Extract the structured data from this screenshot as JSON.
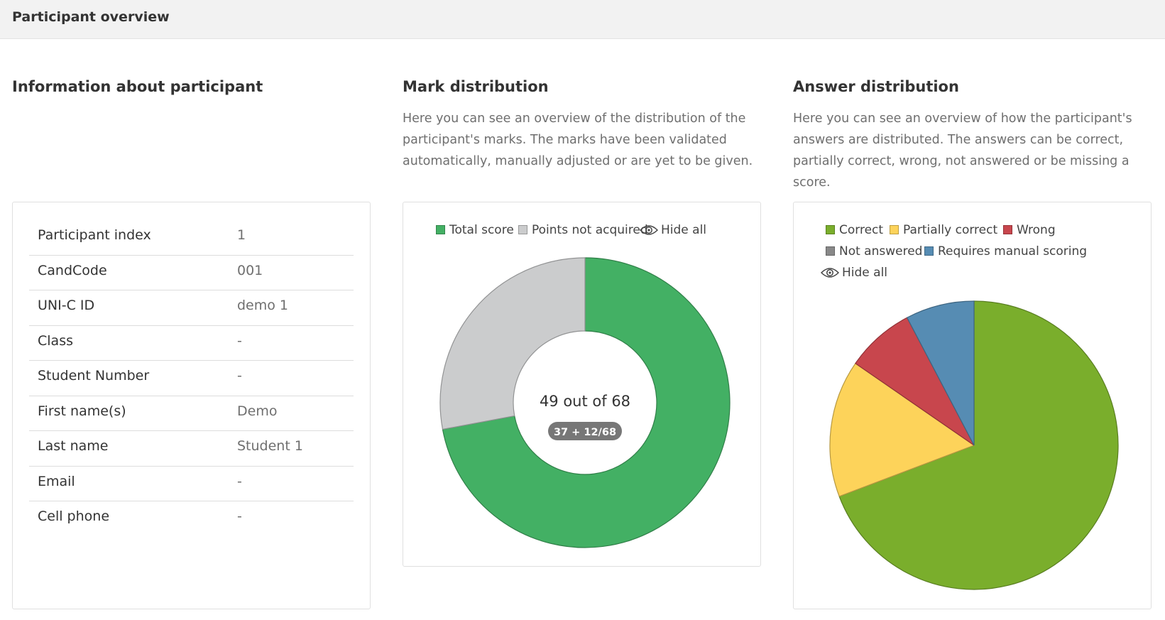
{
  "header": {
    "title": "Participant overview"
  },
  "info": {
    "title": "Information about participant",
    "rows": [
      {
        "label": "Participant index",
        "value": "1"
      },
      {
        "label": "CandCode",
        "value": "001"
      },
      {
        "label": "UNI-C ID",
        "value": "demo 1"
      },
      {
        "label": "Class",
        "value": "-"
      },
      {
        "label": "Student Number",
        "value": "-"
      },
      {
        "label": "First name(s)",
        "value": "Demo"
      },
      {
        "label": "Last name",
        "value": "Student 1"
      },
      {
        "label": "Email",
        "value": "-"
      },
      {
        "label": "Cell phone",
        "value": "-"
      }
    ]
  },
  "marks": {
    "title": "Mark distribution",
    "description": "Here you can see an overview of the distribution of the participant's marks. The marks have been validated automatically, manually adjusted or are yet to be given.",
    "legend": {
      "total": "Total score",
      "not_acquired": "Points not acquired",
      "hide_all": "Hide all"
    },
    "center_label": "49 out of 68",
    "center_badge": "37 + 12/68"
  },
  "answers": {
    "title": "Answer distribution",
    "description": "Here you can see an overview of how the participant's answers are distributed. The answers can be correct, partially correct, wrong, not answered or be missing a score.",
    "legend": {
      "correct": "Correct",
      "partial": "Partially correct",
      "wrong": "Wrong",
      "not_answered": "Not answered",
      "manual": "Requires manual scoring",
      "hide_all": "Hide all"
    }
  },
  "chart_data": [
    {
      "type": "pie",
      "variant": "donut",
      "categories": [
        "Total score",
        "Points not acquired"
      ],
      "values": [
        49,
        19
      ],
      "colors": [
        "#43b064",
        "#cbcccd"
      ],
      "legend_position": "top"
    },
    {
      "type": "pie",
      "categories": [
        "Correct",
        "Partially correct",
        "Wrong",
        "Not answered",
        "Requires manual scoring"
      ],
      "values": [
        9,
        2,
        1,
        0,
        1
      ],
      "colors": [
        "#7aae2c",
        "#fdd35a",
        "#c8464d",
        "#888888",
        "#568cb3"
      ],
      "legend_position": "top"
    }
  ]
}
